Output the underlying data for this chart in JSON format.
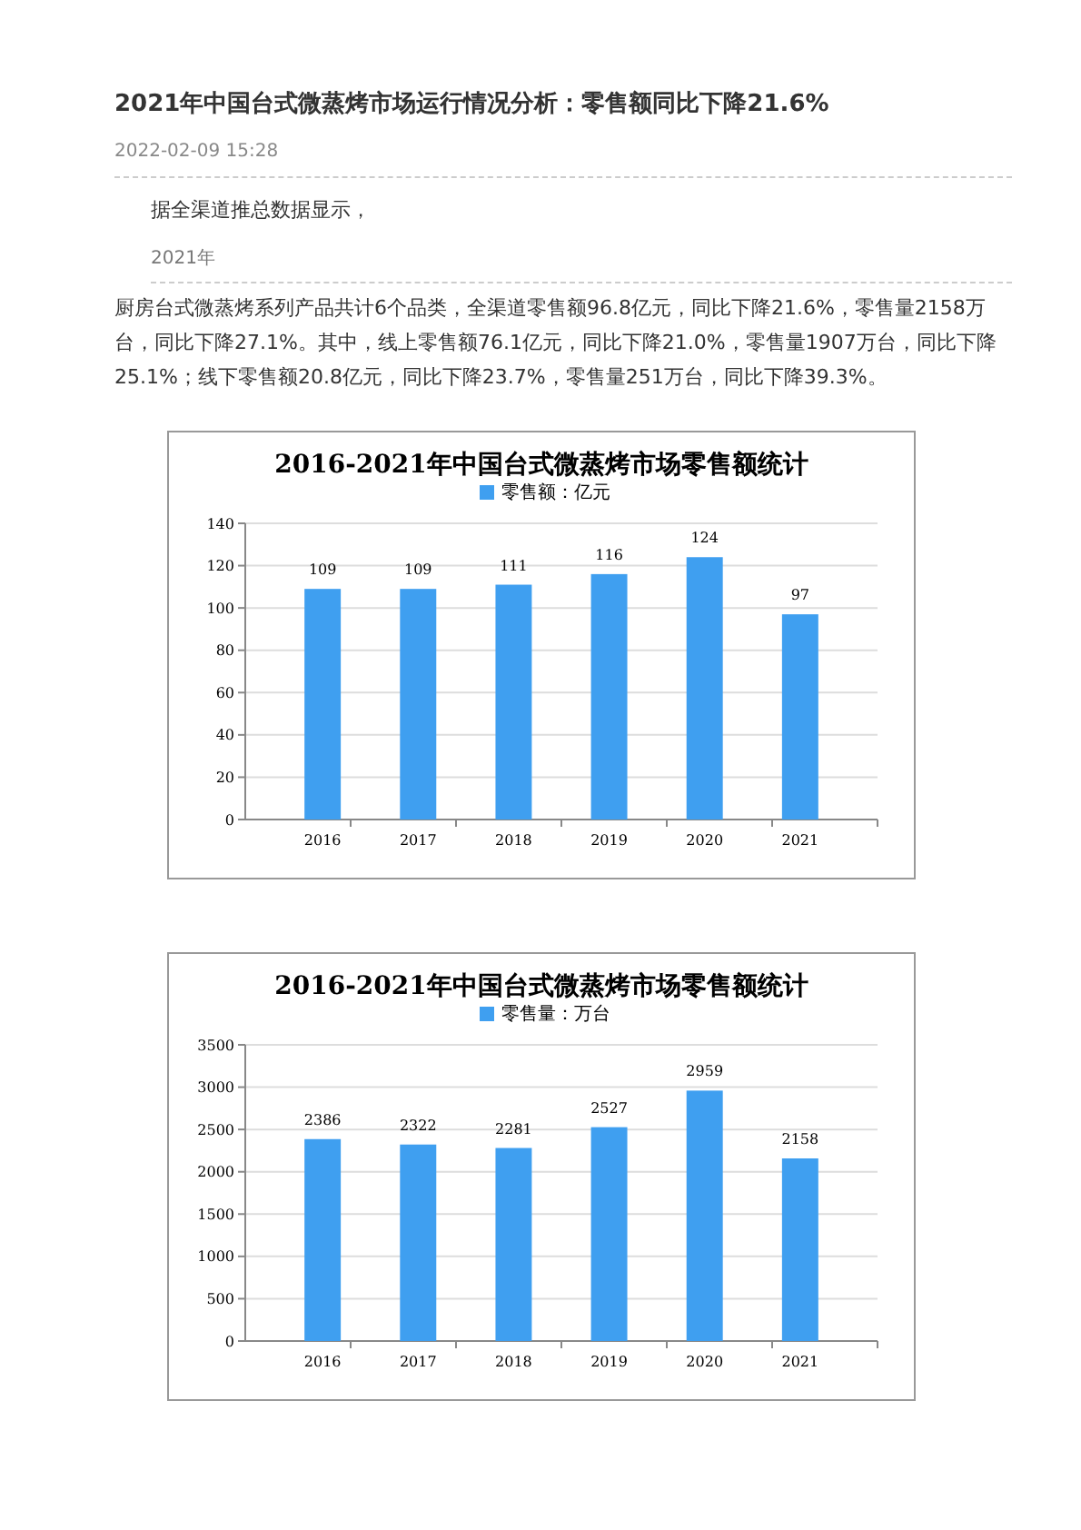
{
  "chart_data": [
    {
      "type": "bar",
      "title": "2016-2021年中国台式微蒸烤市场零售额统计",
      "annotations": [
        "2021年中国台式微蒸烤市场运行情况分析：零售额同比下降21.6%",
        "2022-02-09 15:28",
        "据全渠道推总数据显示，",
        "2021年",
        "厨房台式微蒸烤系列产品共计6个品类，全渠道零售额96.8亿元，同比下降21.6%，零售量2158万台，同比下降27.1%。其中，线上零售额76.1亿元，同比下降21.0%，零售量1907万台，同比下降25.1%；线下零售额20.8亿元，同比下降23.7%，零售量251万台，同比下降39.3%。"
      ],
      "categories": [
        "2016",
        "2017",
        "2018",
        "2019",
        "2020",
        "2021"
      ],
      "series": [
        {
          "name": "零售额：亿元",
          "color": "#3f9ff0",
          "values": [
            109,
            109,
            111,
            116,
            124,
            97
          ]
        }
      ],
      "ylim": [
        0,
        140
      ],
      "yticks": [
        0,
        20,
        40,
        60,
        80,
        100,
        120,
        140
      ],
      "grid": "y",
      "legend": "top",
      "data_labels": true
    },
    {
      "type": "bar",
      "title": "2016-2021年中国台式微蒸烤市场零售额统计",
      "categories": [
        "2016",
        "2017",
        "2018",
        "2019",
        "2020",
        "2021"
      ],
      "series": [
        {
          "name": "零售量：万台",
          "color": "#3f9ff0",
          "values": [
            2386,
            2322,
            2281,
            2527,
            2959,
            2158
          ]
        }
      ],
      "ylim": [
        0,
        3500
      ],
      "yticks": [
        0,
        500,
        1000,
        1500,
        2000,
        2500,
        3000,
        3500
      ],
      "grid": "y",
      "legend": "top",
      "data_labels": true
    }
  ]
}
